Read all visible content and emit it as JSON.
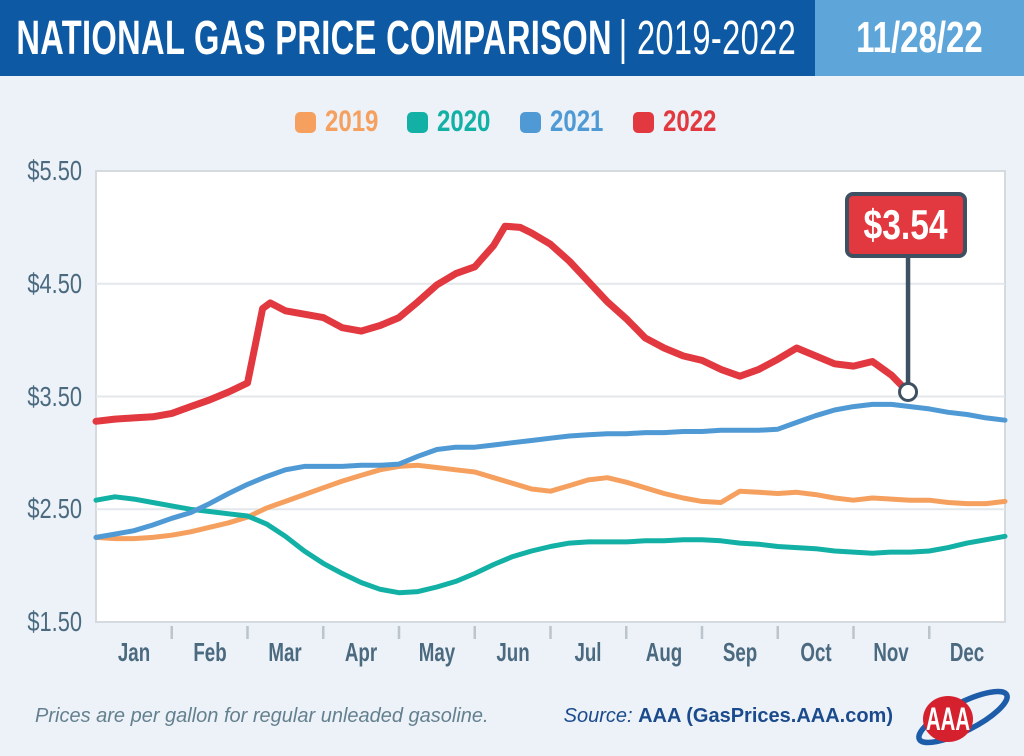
{
  "header": {
    "title_bold": "NATIONAL GAS PRICE COMPARISON",
    "title_light": "| 2019-2022",
    "date": "11/28/22",
    "bg_dark": "#0d59a3",
    "bg_light": "#5ea6d9"
  },
  "legend": {
    "items": [
      {
        "label": "2019",
        "color": "#f5a05f"
      },
      {
        "label": "2020",
        "color": "#12b0a5"
      },
      {
        "label": "2021",
        "color": "#4f9ad4"
      },
      {
        "label": "2022",
        "color": "#e2383f"
      }
    ]
  },
  "chart_data": {
    "type": "line",
    "title": "National Gas Price Comparison 2019-2022",
    "xlabel": "",
    "ylabel": "",
    "ylim": [
      1.5,
      5.5
    ],
    "xlim_months": [
      0,
      12
    ],
    "grid": true,
    "legend_position": "top-center",
    "y_ticks": [
      {
        "label": "$5.50",
        "value": 5.5
      },
      {
        "label": "$4.50",
        "value": 4.5
      },
      {
        "label": "$3.50",
        "value": 3.5
      },
      {
        "label": "$2.50",
        "value": 2.5
      },
      {
        "label": "$1.50",
        "value": 1.5
      }
    ],
    "x_tick_labels": [
      "Jan",
      "Feb",
      "Mar",
      "Apr",
      "May",
      "Jun",
      "Jul",
      "Aug",
      "Sep",
      "Oct",
      "Nov",
      "Dec"
    ],
    "colors": {
      "plot_bg": "#ffffff",
      "plot_border": "#d5dade",
      "gridline": "#e4e7eb",
      "tick": "#bcc5cc",
      "axis_text": "#4b6a80",
      "annotation_stroke": "#3d5162"
    },
    "series": [
      {
        "name": "2019",
        "color": "#f5a05f",
        "width": 5,
        "points": [
          [
            0,
            2.25
          ],
          [
            0.25,
            2.24
          ],
          [
            0.5,
            2.24
          ],
          [
            0.75,
            2.25
          ],
          [
            1,
            2.27
          ],
          [
            1.25,
            2.3
          ],
          [
            1.5,
            2.34
          ],
          [
            1.75,
            2.38
          ],
          [
            2,
            2.43
          ],
          [
            2.25,
            2.51
          ],
          [
            2.5,
            2.57
          ],
          [
            2.75,
            2.63
          ],
          [
            3,
            2.69
          ],
          [
            3.25,
            2.75
          ],
          [
            3.5,
            2.8
          ],
          [
            3.75,
            2.85
          ],
          [
            4,
            2.88
          ],
          [
            4.25,
            2.89
          ],
          [
            4.5,
            2.87
          ],
          [
            4.75,
            2.85
          ],
          [
            5,
            2.83
          ],
          [
            5.25,
            2.78
          ],
          [
            5.5,
            2.73
          ],
          [
            5.75,
            2.68
          ],
          [
            6,
            2.66
          ],
          [
            6.25,
            2.71
          ],
          [
            6.5,
            2.76
          ],
          [
            6.75,
            2.78
          ],
          [
            7,
            2.74
          ],
          [
            7.25,
            2.69
          ],
          [
            7.5,
            2.64
          ],
          [
            7.75,
            2.6
          ],
          [
            8,
            2.57
          ],
          [
            8.25,
            2.56
          ],
          [
            8.5,
            2.66
          ],
          [
            8.75,
            2.65
          ],
          [
            9,
            2.64
          ],
          [
            9.25,
            2.65
          ],
          [
            9.5,
            2.63
          ],
          [
            9.75,
            2.6
          ],
          [
            10,
            2.58
          ],
          [
            10.25,
            2.6
          ],
          [
            10.5,
            2.59
          ],
          [
            10.75,
            2.58
          ],
          [
            11,
            2.58
          ],
          [
            11.25,
            2.56
          ],
          [
            11.5,
            2.55
          ],
          [
            11.75,
            2.55
          ],
          [
            12,
            2.57
          ]
        ]
      },
      {
        "name": "2020",
        "color": "#12b0a5",
        "width": 5,
        "points": [
          [
            0,
            2.58
          ],
          [
            0.25,
            2.61
          ],
          [
            0.5,
            2.59
          ],
          [
            0.75,
            2.56
          ],
          [
            1,
            2.53
          ],
          [
            1.25,
            2.5
          ],
          [
            1.5,
            2.48
          ],
          [
            1.75,
            2.46
          ],
          [
            2,
            2.44
          ],
          [
            2.25,
            2.37
          ],
          [
            2.5,
            2.26
          ],
          [
            2.75,
            2.13
          ],
          [
            3,
            2.02
          ],
          [
            3.25,
            1.93
          ],
          [
            3.5,
            1.85
          ],
          [
            3.75,
            1.79
          ],
          [
            4,
            1.76
          ],
          [
            4.25,
            1.77
          ],
          [
            4.5,
            1.81
          ],
          [
            4.75,
            1.86
          ],
          [
            5,
            1.93
          ],
          [
            5.25,
            2.01
          ],
          [
            5.5,
            2.08
          ],
          [
            5.75,
            2.13
          ],
          [
            6,
            2.17
          ],
          [
            6.25,
            2.2
          ],
          [
            6.5,
            2.21
          ],
          [
            6.75,
            2.21
          ],
          [
            7,
            2.21
          ],
          [
            7.25,
            2.22
          ],
          [
            7.5,
            2.22
          ],
          [
            7.75,
            2.23
          ],
          [
            8,
            2.23
          ],
          [
            8.25,
            2.22
          ],
          [
            8.5,
            2.2
          ],
          [
            8.75,
            2.19
          ],
          [
            9,
            2.17
          ],
          [
            9.25,
            2.16
          ],
          [
            9.5,
            2.15
          ],
          [
            9.75,
            2.13
          ],
          [
            10,
            2.12
          ],
          [
            10.25,
            2.11
          ],
          [
            10.5,
            2.12
          ],
          [
            10.75,
            2.12
          ],
          [
            11,
            2.13
          ],
          [
            11.25,
            2.16
          ],
          [
            11.5,
            2.2
          ],
          [
            11.75,
            2.23
          ],
          [
            12,
            2.26
          ]
        ]
      },
      {
        "name": "2021",
        "color": "#4f9ad4",
        "width": 5,
        "points": [
          [
            0,
            2.25
          ],
          [
            0.25,
            2.28
          ],
          [
            0.5,
            2.31
          ],
          [
            0.75,
            2.36
          ],
          [
            1,
            2.42
          ],
          [
            1.25,
            2.47
          ],
          [
            1.5,
            2.55
          ],
          [
            1.75,
            2.64
          ],
          [
            2,
            2.72
          ],
          [
            2.25,
            2.79
          ],
          [
            2.5,
            2.85
          ],
          [
            2.75,
            2.88
          ],
          [
            3,
            2.88
          ],
          [
            3.25,
            2.88
          ],
          [
            3.5,
            2.89
          ],
          [
            3.75,
            2.89
          ],
          [
            4,
            2.9
          ],
          [
            4.25,
            2.97
          ],
          [
            4.5,
            3.03
          ],
          [
            4.75,
            3.05
          ],
          [
            5,
            3.05
          ],
          [
            5.25,
            3.07
          ],
          [
            5.5,
            3.09
          ],
          [
            5.75,
            3.11
          ],
          [
            6,
            3.13
          ],
          [
            6.25,
            3.15
          ],
          [
            6.5,
            3.16
          ],
          [
            6.75,
            3.17
          ],
          [
            7,
            3.17
          ],
          [
            7.25,
            3.18
          ],
          [
            7.5,
            3.18
          ],
          [
            7.75,
            3.19
          ],
          [
            8,
            3.19
          ],
          [
            8.25,
            3.2
          ],
          [
            8.5,
            3.2
          ],
          [
            8.75,
            3.2
          ],
          [
            9,
            3.21
          ],
          [
            9.25,
            3.27
          ],
          [
            9.5,
            3.33
          ],
          [
            9.75,
            3.38
          ],
          [
            10,
            3.41
          ],
          [
            10.25,
            3.43
          ],
          [
            10.5,
            3.43
          ],
          [
            10.75,
            3.41
          ],
          [
            11,
            3.39
          ],
          [
            11.25,
            3.36
          ],
          [
            11.5,
            3.34
          ],
          [
            11.75,
            3.31
          ],
          [
            12,
            3.29
          ]
        ]
      },
      {
        "name": "2022",
        "color": "#e2383f",
        "width": 7,
        "points": [
          [
            0,
            3.28
          ],
          [
            0.25,
            3.3
          ],
          [
            0.5,
            3.31
          ],
          [
            0.75,
            3.32
          ],
          [
            1,
            3.35
          ],
          [
            1.25,
            3.41
          ],
          [
            1.5,
            3.47
          ],
          [
            1.75,
            3.54
          ],
          [
            2,
            3.62
          ],
          [
            2.1,
            3.95
          ],
          [
            2.2,
            4.28
          ],
          [
            2.3,
            4.33
          ],
          [
            2.5,
            4.26
          ],
          [
            2.75,
            4.23
          ],
          [
            3,
            4.2
          ],
          [
            3.25,
            4.11
          ],
          [
            3.5,
            4.08
          ],
          [
            3.75,
            4.13
          ],
          [
            4,
            4.2
          ],
          [
            4.25,
            4.34
          ],
          [
            4.5,
            4.49
          ],
          [
            4.75,
            4.59
          ],
          [
            5,
            4.65
          ],
          [
            5.25,
            4.84
          ],
          [
            5.4,
            5.01
          ],
          [
            5.6,
            5.0
          ],
          [
            5.75,
            4.95
          ],
          [
            6,
            4.85
          ],
          [
            6.25,
            4.7
          ],
          [
            6.5,
            4.52
          ],
          [
            6.75,
            4.34
          ],
          [
            7,
            4.19
          ],
          [
            7.25,
            4.02
          ],
          [
            7.5,
            3.93
          ],
          [
            7.75,
            3.86
          ],
          [
            8,
            3.82
          ],
          [
            8.25,
            3.74
          ],
          [
            8.5,
            3.68
          ],
          [
            8.75,
            3.74
          ],
          [
            9,
            3.83
          ],
          [
            9.25,
            3.93
          ],
          [
            9.5,
            3.86
          ],
          [
            9.75,
            3.79
          ],
          [
            10,
            3.77
          ],
          [
            10.25,
            3.81
          ],
          [
            10.5,
            3.69
          ],
          [
            10.72,
            3.54
          ]
        ]
      }
    ],
    "annotation": {
      "label": "$3.54",
      "x_month": 10.72,
      "value": 3.54,
      "box_color": "#e2383f",
      "stroke_color": "#3d5162"
    }
  },
  "footer": {
    "note": "Prices are per gallon for regular unleaded gasoline.",
    "source_prefix": "Source:",
    "source_bold": "AAA (GasPrices.AAA.com)",
    "logo_text": "AAA",
    "logo_red": "#d5212e",
    "logo_blue": "#1d5ca8"
  }
}
